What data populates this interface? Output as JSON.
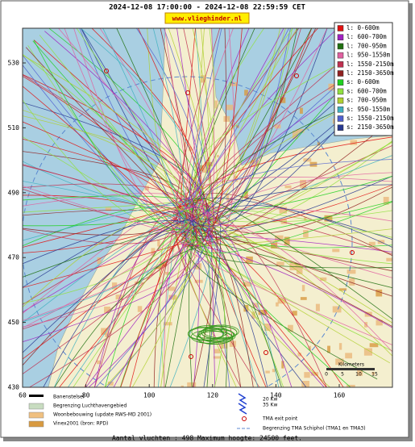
{
  "header": {
    "title": "2024-12-08 17:00:00 - 2024-12-08 22:59:59 CET",
    "site": "www.vlieghinder.nl"
  },
  "legend": {
    "items": [
      {
        "label": "l: 0-600m",
        "color": "#e01010"
      },
      {
        "label": "l: 600-700m",
        "color": "#a020c0"
      },
      {
        "label": "l: 700-950m",
        "color": "#207010"
      },
      {
        "label": "l: 950-1550m",
        "color": "#e060a0"
      },
      {
        "label": "l: 1550-2150m",
        "color": "#c03050"
      },
      {
        "label": "l: 2150-3650m",
        "color": "#902020"
      },
      {
        "label": "s: 0-600m",
        "color": "#20d020"
      },
      {
        "label": "s: 600-700m",
        "color": "#90e040"
      },
      {
        "label": "s: 700-950m",
        "color": "#b0d030"
      },
      {
        "label": "s: 950-1550m",
        "color": "#40b0c0"
      },
      {
        "label": "s: 1550-2150m",
        "color": "#5060d0"
      },
      {
        "label": "s: 2150-3650m",
        "color": "#283890"
      }
    ]
  },
  "axes": {
    "xticks": [
      60,
      80,
      100,
      120,
      140,
      160
    ],
    "yticks": [
      530,
      510,
      490,
      470,
      450,
      430
    ]
  },
  "scale": {
    "title": "Kilometers",
    "ticks": [
      0,
      5,
      10,
      15
    ]
  },
  "map_legend": {
    "items": [
      "Banenstelsel",
      "Begrenzing Luchthavengebied",
      "Woonbebouwing (update RWS-MD 2001)",
      "Vinex2001 (bron: RPD)"
    ],
    "wind": [
      "20 Kw",
      "35 Kw"
    ],
    "exit": "TMA exit point",
    "tma": "Begrenzing TMA Schiphol  (TMA1 en TMA3)"
  },
  "footer": "Aantal vluchten : 498 Maximum hoogte: 24500 feet."
}
